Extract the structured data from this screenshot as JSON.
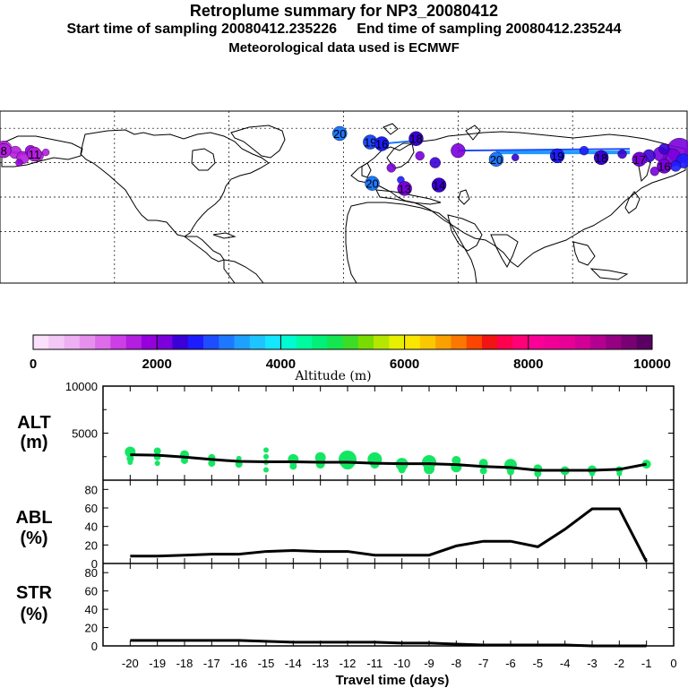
{
  "header": {
    "title": "Retroplume summary for NP3_20080412",
    "sampling_line": "Start time of sampling 20080412.235226     End time of sampling 20080412.235244",
    "met_line": "Meteorological data used is ECMWF"
  },
  "map": {
    "day_labels": [
      {
        "label": "20",
        "lon": -2,
        "lat": 77,
        "alt": 3000
      },
      {
        "label": "19",
        "lon": 14,
        "lat": 72,
        "alt": 2800
      },
      {
        "label": "18",
        "lon": 38,
        "lat": 74,
        "alt": 2400
      },
      {
        "label": "16",
        "lon": 20,
        "lat": 71,
        "alt": 2600
      },
      {
        "label": "20",
        "lon": 80,
        "lat": 62,
        "alt": 3200
      },
      {
        "label": "19",
        "lon": 112,
        "lat": 64,
        "alt": 2700
      },
      {
        "label": "18",
        "lon": 135,
        "lat": 63,
        "alt": 2400
      },
      {
        "label": "17",
        "lon": 155,
        "lat": 62,
        "alt": 2200
      },
      {
        "label": "16",
        "lon": 168,
        "lat": 58,
        "alt": 2000
      },
      {
        "label": "11",
        "lon": -162,
        "lat": 65,
        "alt": 1700
      },
      {
        "label": "8",
        "lon": -178,
        "lat": 67,
        "alt": 1500
      },
      {
        "label": "20",
        "lon": 15,
        "lat": 48,
        "alt": 3000
      },
      {
        "label": "13",
        "lon": 32,
        "lat": 45,
        "alt": 2200
      },
      {
        "label": "14",
        "lon": 50,
        "lat": 47,
        "alt": 2300
      }
    ]
  },
  "colorbar": {
    "tick_labels": [
      "0",
      "2000",
      "4000",
      "6000",
      "8000",
      "10000"
    ],
    "title": "Altitude (m)",
    "colors": [
      "#fae0fa",
      "#f4c8f6",
      "#eeb0f2",
      "#e690ee",
      "#dc6cea",
      "#cc3ee6",
      "#b41ee0",
      "#9600dc",
      "#7a00dc",
      "#3a00d6",
      "#1c1cff",
      "#1e4cff",
      "#1e78ff",
      "#1ea0ff",
      "#1ec4ff",
      "#14e6ff",
      "#00fad2",
      "#00faa0",
      "#00f078",
      "#14e650",
      "#3cdc28",
      "#78dc00",
      "#b4e600",
      "#e6f000",
      "#fae600",
      "#fac800",
      "#faa000",
      "#fa7800",
      "#fa4600",
      "#f01414",
      "#ff0050",
      "#ff0078",
      "#fa0096",
      "#f00096",
      "#e60096",
      "#d20096",
      "#b40091",
      "#960082",
      "#780073",
      "#5a0064"
    ]
  },
  "panels": {
    "alt": {
      "label_line1": "ALT",
      "label_line2": "(m)"
    },
    "abl": {
      "label_line1": "ABL",
      "label_line2": "(%)"
    },
    "str": {
      "label_line1": "STR",
      "label_line2": "(%)"
    }
  },
  "chart_data": [
    {
      "type": "line",
      "name": "ALT",
      "ylabel": "ALT (m)",
      "xlim": [
        -21,
        0
      ],
      "ylim": [
        0,
        10000
      ],
      "ytick_labels": [
        "10000",
        "5000"
      ],
      "x": [
        -20,
        -19,
        -18,
        -17,
        -16,
        -15,
        -14,
        -13,
        -12,
        -11,
        -10,
        -9,
        -8,
        -7,
        -6,
        -5,
        -4,
        -3,
        -2,
        -1
      ],
      "values": [
        2700,
        2650,
        2450,
        2200,
        2000,
        1950,
        1950,
        1900,
        1900,
        1800,
        1750,
        1750,
        1650,
        1450,
        1350,
        1050,
        1050,
        1050,
        1150,
        1700
      ],
      "plume_clusters": [
        [
          {
            "y": 3000,
            "r": 6
          },
          {
            "y": 2300,
            "r": 4
          },
          {
            "y": 1900,
            "r": 3
          }
        ],
        [
          {
            "y": 3100,
            "r": 4
          },
          {
            "y": 2500,
            "r": 4
          },
          {
            "y": 1800,
            "r": 3
          }
        ],
        [
          {
            "y": 2700,
            "r": 5
          },
          {
            "y": 2100,
            "r": 4
          }
        ],
        [
          {
            "y": 2400,
            "r": 4
          },
          {
            "y": 1800,
            "r": 4
          }
        ],
        [
          {
            "y": 2300,
            "r": 3
          },
          {
            "y": 1700,
            "r": 4
          }
        ],
        [
          {
            "y": 3200,
            "r": 3
          },
          {
            "y": 2500,
            "r": 3
          },
          {
            "y": 1900,
            "r": 3
          },
          {
            "y": 1100,
            "r": 3
          }
        ],
        [
          {
            "y": 2200,
            "r": 6
          },
          {
            "y": 1500,
            "r": 4
          }
        ],
        [
          {
            "y": 2400,
            "r": 6
          },
          {
            "y": 1700,
            "r": 5
          }
        ],
        [
          {
            "y": 2200,
            "r": 10
          },
          {
            "y": 1900,
            "r": 8
          }
        ],
        [
          {
            "y": 2200,
            "r": 8
          },
          {
            "y": 1700,
            "r": 5
          }
        ],
        [
          {
            "y": 1700,
            "r": 7
          },
          {
            "y": 1100,
            "r": 4
          }
        ],
        [
          {
            "y": 1900,
            "r": 8
          },
          {
            "y": 1200,
            "r": 6
          }
        ],
        [
          {
            "y": 2100,
            "r": 5
          },
          {
            "y": 1400,
            "r": 6
          }
        ],
        [
          {
            "y": 1800,
            "r": 5
          },
          {
            "y": 1000,
            "r": 4
          }
        ],
        [
          {
            "y": 1600,
            "r": 7
          },
          {
            "y": 900,
            "r": 4
          }
        ],
        [
          {
            "y": 1200,
            "r": 5
          },
          {
            "y": 700,
            "r": 4
          }
        ],
        [
          {
            "y": 1000,
            "r": 5
          }
        ],
        [
          {
            "y": 1100,
            "r": 5
          },
          {
            "y": 700,
            "r": 3
          }
        ],
        [
          {
            "y": 1100,
            "r": 4
          },
          {
            "y": 700,
            "r": 3
          }
        ],
        [
          {
            "y": 1700,
            "r": 5
          }
        ]
      ]
    },
    {
      "type": "line",
      "name": "ABL",
      "ylabel": "ABL (%)",
      "xlim": [
        -21,
        0
      ],
      "ylim": [
        0,
        90
      ],
      "ytick_labels": [
        "80",
        "60",
        "40",
        "20",
        "0"
      ],
      "x": [
        -20,
        -19,
        -18,
        -17,
        -16,
        -15,
        -14,
        -13,
        -12,
        -11,
        -10,
        -9,
        -8,
        -7,
        -6,
        -5,
        -4,
        -3,
        -2,
        -1
      ],
      "values": [
        8,
        8,
        9,
        10,
        10,
        13,
        14,
        13,
        13,
        9,
        9,
        9,
        19,
        24,
        24,
        18,
        37,
        59,
        59,
        2
      ]
    },
    {
      "type": "line",
      "name": "STR",
      "ylabel": "STR (%)",
      "xlim": [
        -21,
        0
      ],
      "ylim": [
        0,
        90
      ],
      "ytick_labels": [
        "80",
        "60",
        "40",
        "20",
        "0"
      ],
      "x": [
        -20,
        -19,
        -18,
        -17,
        -16,
        -15,
        -14,
        -13,
        -12,
        -11,
        -10,
        -9,
        -8,
        -7,
        -6,
        -5,
        -4,
        -3,
        -2,
        -1
      ],
      "values": [
        6,
        6,
        6,
        6,
        6,
        5,
        4,
        4,
        4,
        4,
        3,
        3,
        2,
        1,
        1,
        1,
        1,
        0,
        0,
        0
      ],
      "xlabel": "Travel time (days)",
      "xtick_labels": [
        "-20",
        "-19",
        "-18",
        "-17",
        "-16",
        "-15",
        "-14",
        "-13",
        "-12",
        "-11",
        "-10",
        "-9",
        "-8",
        "-7",
        "-6",
        "-5",
        "-4",
        "-3",
        "-2",
        "-1",
        "0"
      ]
    }
  ]
}
